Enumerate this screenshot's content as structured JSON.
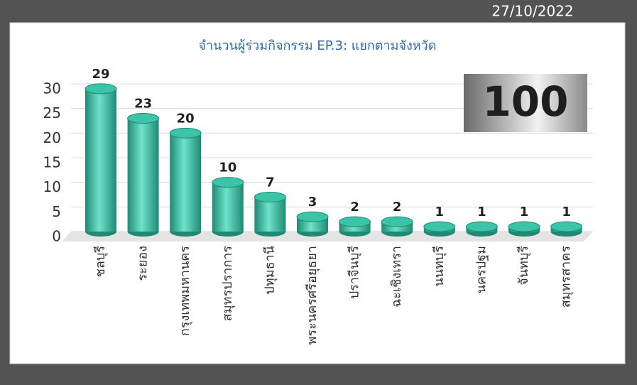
{
  "date": "27/10/2022",
  "chart_data": {
    "type": "bar",
    "title": "จำนวนผู้ร่วมกิจกรรม EP.3: แยกตามจังหวัด",
    "categories": [
      "ชลบุรี",
      "ระยอง",
      "กรุงเทพมหานคร",
      "สมุทรปราการ",
      "ปทุมธานี",
      "พระนครศรีอยุธยา",
      "ปราจีนบุรี",
      "ฉะเชิงเทรา",
      "นนทบุรี",
      "นครปฐม",
      "จันทบุรี",
      "สมุทรสาคร"
    ],
    "values": [
      29,
      23,
      20,
      10,
      7,
      3,
      2,
      2,
      1,
      1,
      1,
      1
    ],
    "color": "#3cc4a8",
    "ylim": [
      0,
      30
    ],
    "yticks": [
      0,
      5,
      10,
      15,
      20,
      25,
      30
    ],
    "grid": true,
    "total": 100
  }
}
